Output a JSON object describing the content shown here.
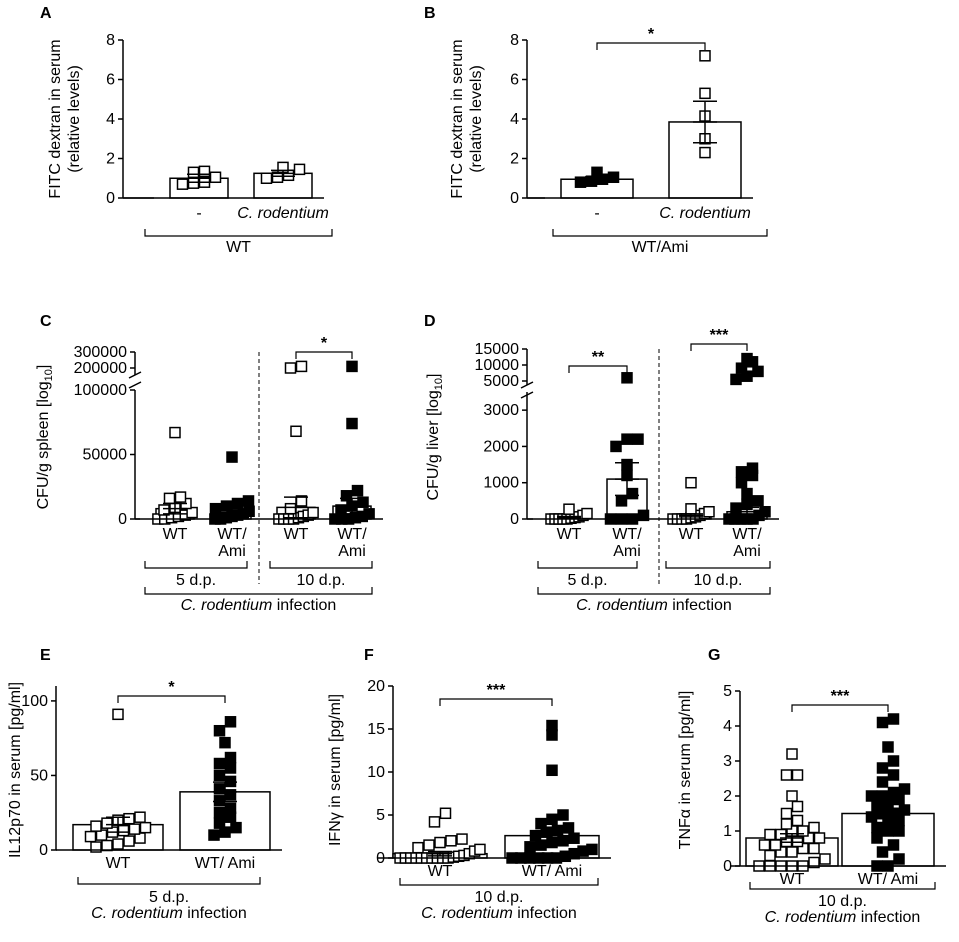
{
  "chart_data": [
    {
      "id": "A",
      "panel_label": "A",
      "type": "bar",
      "ylabel_lines": [
        "FITC dextran in serum",
        "(relative levels)"
      ],
      "ylim": [
        0,
        8
      ],
      "yticks": [
        0,
        2,
        4,
        6,
        8
      ],
      "categories": [
        {
          "label": "-",
          "italic": false,
          "mean": 1.0,
          "sem": 0.2,
          "fill": "open",
          "points": [
            0.7,
            0.75,
            0.8,
            1.05,
            1.3,
            1.35
          ]
        },
        {
          "label": "C. rodentium",
          "italic": true,
          "mean": 1.25,
          "sem": 0.15,
          "fill": "open",
          "points": [
            1.0,
            1.05,
            1.15,
            1.45,
            1.55
          ]
        }
      ],
      "groups": [
        {
          "lines": [
            "WT"
          ],
          "italic_first_word": false,
          "from": 0,
          "to": 1
        }
      ],
      "significance": []
    },
    {
      "id": "B",
      "panel_label": "B",
      "type": "bar",
      "ylabel_lines": [
        "FITC dextran in serum",
        "(relative levels)"
      ],
      "ylim": [
        0,
        8
      ],
      "yticks": [
        0,
        2,
        4,
        6,
        8
      ],
      "categories": [
        {
          "label": "-",
          "italic": false,
          "mean": 0.95,
          "sem": 0.12,
          "fill": "closed",
          "points": [
            0.8,
            0.85,
            0.95,
            1.05,
            1.3
          ]
        },
        {
          "label": "C. rodentium",
          "italic": true,
          "mean": 3.85,
          "sem": 1.05,
          "fill": "open",
          "points": [
            2.3,
            3.0,
            4.15,
            5.3,
            7.2
          ]
        }
      ],
      "groups": [
        {
          "lines": [
            "WT/Ami"
          ],
          "italic_first_word": false,
          "from": 0,
          "to": 1
        }
      ],
      "significance": [
        {
          "from": 0,
          "to": 1,
          "label": "*"
        }
      ]
    },
    {
      "id": "C",
      "panel_label": "C",
      "type": "bar",
      "ylabel": "CFU/g spleen [log",
      "ylabel_sub": "10",
      "ylabel_end": "]",
      "ylim": [
        0,
        100000
      ],
      "yticks": [
        0,
        50000,
        100000
      ],
      "break_ticks": [
        200000,
        300000
      ],
      "categories": [
        {
          "label": "WT",
          "italic": false,
          "mean": 8000,
          "sem": 4000,
          "fill": "open",
          "points": [
            0,
            0,
            1000,
            2000,
            3000,
            5000,
            7000,
            9000,
            12000,
            16000,
            17000,
            67000
          ]
        },
        {
          "label": "WT/ Ami",
          "italic": false,
          "mean": 7000,
          "sem": 3500,
          "fill": "closed",
          "points": [
            0,
            0,
            1000,
            2000,
            3000,
            4000,
            6000,
            8000,
            10000,
            12000,
            14000,
            48000
          ]
        },
        {
          "label": "WT",
          "italic": false,
          "mean": 9000,
          "sem": 8000,
          "fill": "open",
          "points": [
            0,
            0,
            0,
            0,
            1000,
            2000,
            3000,
            5000,
            8000,
            14000,
            68000,
            200000,
            210000
          ]
        },
        {
          "label": "WT/ Ami",
          "italic": false,
          "mean": 10000,
          "sem": 6000,
          "fill": "closed",
          "points": [
            0,
            0,
            0,
            1000,
            2000,
            4000,
            7000,
            10000,
            13000,
            18000,
            22000,
            74000,
            210000
          ]
        }
      ],
      "groups": [
        {
          "lines": [
            "5 d.p."
          ],
          "from": 0,
          "to": 1
        },
        {
          "lines": [
            "10 d.p."
          ],
          "from": 2,
          "to": 3
        }
      ],
      "supergroup": {
        "italic": "C. rodentium",
        "rest": " infection",
        "from": 0,
        "to": 3
      },
      "significance": [
        {
          "from": 2,
          "to": 3,
          "label": "*"
        }
      ]
    },
    {
      "id": "D",
      "panel_label": "D",
      "type": "bar",
      "ylabel": "CFU/g liver [log",
      "ylabel_sub": "10",
      "ylabel_end": "]",
      "ylim": [
        0,
        3500
      ],
      "yticks": [
        0,
        1000,
        2000,
        3000
      ],
      "break_ticks": [
        5000,
        10000,
        15000
      ],
      "categories": [
        {
          "label": "WT",
          "italic": false,
          "mean": 50,
          "sem": 20,
          "fill": "open",
          "points": [
            0,
            0,
            0,
            0,
            0,
            20,
            40,
            60,
            100,
            150,
            270
          ]
        },
        {
          "label": "WT/ Ami",
          "italic": false,
          "mean": 1100,
          "sem": 450,
          "fill": "closed",
          "points": [
            0,
            0,
            0,
            100,
            500,
            700,
            1200,
            1500,
            2000,
            2200,
            2200,
            6000
          ]
        },
        {
          "label": "WT",
          "italic": false,
          "mean": 100,
          "sem": 40,
          "fill": "open",
          "points": [
            0,
            0,
            0,
            0,
            30,
            60,
            100,
            150,
            200,
            280,
            1000
          ]
        },
        {
          "label": "WT/ Ami",
          "italic": false,
          "mean": 200,
          "sem": 120,
          "fill": "closed",
          "points": [
            0,
            0,
            0,
            0,
            0,
            100,
            200,
            300,
            400,
            500,
            700,
            1000,
            1200,
            1300,
            1400,
            5500,
            6500,
            8000,
            9000,
            11000,
            12000
          ]
        }
      ],
      "groups": [
        {
          "lines": [
            "5 d.p."
          ],
          "from": 0,
          "to": 1
        },
        {
          "lines": [
            "10 d.p."
          ],
          "from": 2,
          "to": 3
        }
      ],
      "supergroup": {
        "italic": "C. rodentium",
        "rest": " infection",
        "from": 0,
        "to": 3
      },
      "significance": [
        {
          "from": 0,
          "to": 1,
          "label": "**"
        },
        {
          "from": 2,
          "to": 3,
          "label": "***"
        }
      ]
    },
    {
      "id": "E",
      "panel_label": "E",
      "type": "bar",
      "ylabel": "IL12p70 in serum [pg/ml]",
      "ylim": [
        0,
        110
      ],
      "yticks": [
        0,
        50,
        100
      ],
      "categories": [
        {
          "label": "WT",
          "italic": false,
          "mean": 17,
          "sem": 5,
          "fill": "open",
          "points": [
            2,
            3,
            4,
            6,
            8,
            9,
            10,
            12,
            13,
            14,
            15,
            16,
            18,
            20,
            21,
            22,
            91
          ]
        },
        {
          "label": "WT/ Ami",
          "italic": false,
          "mean": 39,
          "sem": 6.5,
          "fill": "closed",
          "points": [
            10,
            12,
            15,
            18,
            22,
            25,
            28,
            33,
            37,
            41,
            46,
            50,
            55,
            58,
            62,
            72,
            80,
            86
          ]
        }
      ],
      "groups": [
        {
          "lines": [
            "5 d.p."
          ],
          "from": 0,
          "to": 1
        }
      ],
      "supergroup_under": {
        "italic": "C. rodentium",
        "rest": " infection"
      },
      "significance": [
        {
          "from": 0,
          "to": 1,
          "label": "*"
        }
      ]
    },
    {
      "id": "F",
      "panel_label": "F",
      "type": "bar",
      "ylabel": "IFNγ in serum [pg/ml]",
      "ylim": [
        0,
        20
      ],
      "yticks": [
        0,
        5,
        10,
        15,
        20
      ],
      "categories": [
        {
          "label": "WT",
          "italic": false,
          "mean": 0.5,
          "sem": 0.25,
          "fill": "open",
          "points": [
            0,
            0,
            0,
            0,
            0,
            0,
            0,
            0,
            0,
            0,
            0.1,
            0.2,
            0.3,
            0.5,
            0.8,
            1.0,
            1.2,
            1.5,
            1.8,
            2.0,
            2.2,
            4.2,
            5.2
          ]
        },
        {
          "label": "WT/ Ami",
          "italic": false,
          "mean": 2.6,
          "sem": 0.6,
          "fill": "closed",
          "points": [
            0,
            0,
            0,
            0,
            0,
            0,
            0.2,
            0.5,
            0.8,
            1.0,
            1.3,
            1.5,
            1.8,
            2.0,
            2.3,
            2.6,
            3.0,
            3.2,
            3.5,
            4.0,
            4.5,
            5.0,
            10.2,
            14.3,
            15.4
          ]
        }
      ],
      "groups": [
        {
          "lines": [
            "10 d.p."
          ],
          "from": 0,
          "to": 1
        }
      ],
      "supergroup_under": {
        "italic": "C. rodentium",
        "rest": " infection"
      },
      "significance": [
        {
          "from": 0,
          "to": 1,
          "label": "***"
        }
      ]
    },
    {
      "id": "G",
      "panel_label": "G",
      "type": "bar",
      "ylabel": "TNFα in serum [pg/ml]",
      "ylim": [
        0,
        5
      ],
      "yticks": [
        0,
        1,
        2,
        3,
        4,
        5
      ],
      "categories": [
        {
          "label": "WT",
          "italic": false,
          "mean": 0.8,
          "sem": 0.12,
          "fill": "open",
          "points": [
            0,
            0,
            0,
            0,
            0,
            0.1,
            0.2,
            0.3,
            0.4,
            0.4,
            0.5,
            0.5,
            0.6,
            0.6,
            0.7,
            0.7,
            0.8,
            0.8,
            0.9,
            0.9,
            1.0,
            1.0,
            1.1,
            1.2,
            1.3,
            1.5,
            1.7,
            2.0,
            2.6,
            2.6,
            3.2
          ]
        },
        {
          "label": "WT/ Ami",
          "italic": false,
          "mean": 1.5,
          "sem": 0.15,
          "fill": "closed",
          "points": [
            0,
            0,
            0.2,
            0.4,
            0.6,
            0.8,
            1.0,
            1.0,
            1.1,
            1.2,
            1.3,
            1.4,
            1.5,
            1.5,
            1.6,
            1.7,
            1.8,
            1.9,
            2.0,
            2.0,
            2.1,
            2.2,
            2.4,
            2.6,
            2.8,
            3.0,
            3.4,
            4.1,
            4.2
          ]
        }
      ],
      "groups": [
        {
          "lines": [
            "10 d.p."
          ],
          "from": 0,
          "to": 1
        }
      ],
      "supergroup_under": {
        "italic": "C. rodentium",
        "rest": " infection"
      },
      "significance": [
        {
          "from": 0,
          "to": 1,
          "label": "***"
        }
      ]
    }
  ]
}
